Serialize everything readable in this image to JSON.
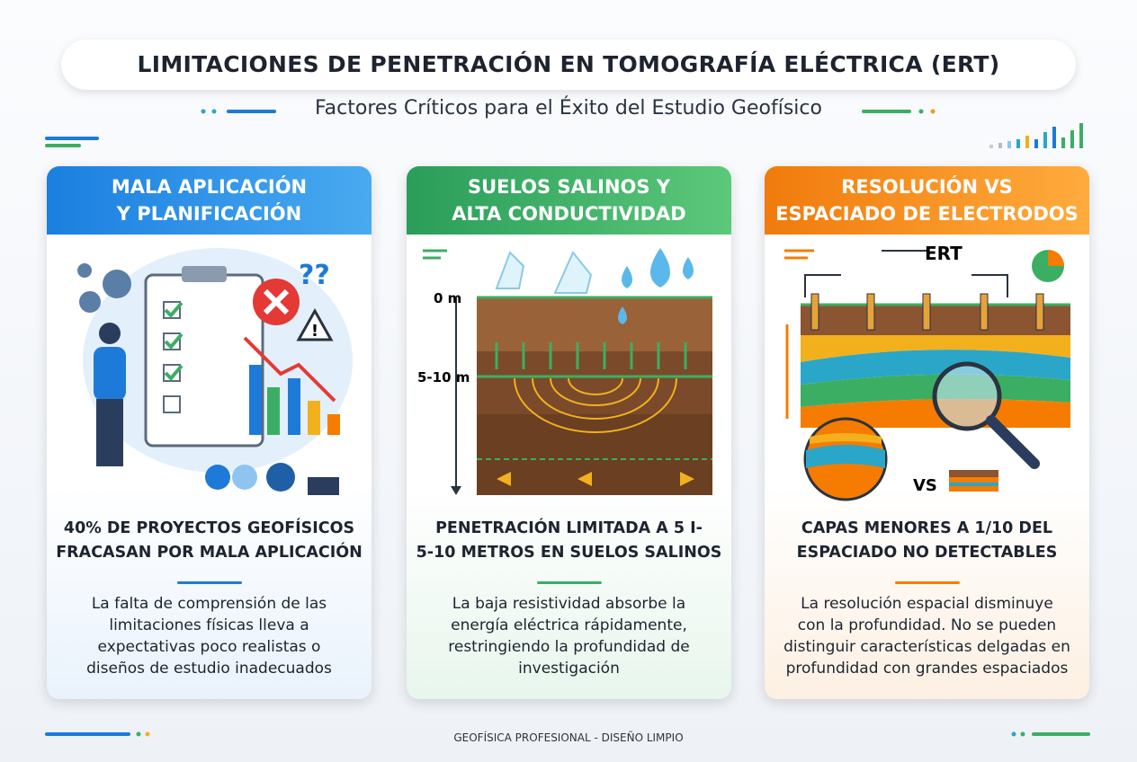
{
  "header": {
    "title": "LIMITACIONES DE PENETRACIÓN EN TOMOGRAFÍA ELÉCTRICA (ERT)",
    "subtitle": "Factores Críticos para el Éxito del Estudio Geofísico"
  },
  "cards": [
    {
      "title_lines": [
        "MALA APLICACIÓN",
        "Y PLANIFICACIÓN"
      ],
      "figure_labels": [],
      "headline_lines": [
        "40% DE PROYECTOS GEOFÍSICOS",
        "FRACASAN POR MALA APLICACIÓN"
      ],
      "description_lines": [
        "La falta de comprensión de las",
        "limitaciones físicas lleva a",
        "expectativas poco realistas o",
        "diseños de estudio inadecuados"
      ]
    },
    {
      "title_lines": [
        "SUELOS SALINOS Y",
        "ALTA CONDUCTIVIDAD"
      ],
      "figure_labels": [
        "0 m",
        "5-10 m"
      ],
      "headline_lines": [
        "PENETRACIÓN LIMITADA A 5 I-",
        "5-10 METROS EN SUELOS SALINOS"
      ],
      "description_lines": [
        "La baja resistividad absorbe la",
        "energía eléctrica rápidamente,",
        "restringiendo la profundidad de",
        "investigación"
      ]
    },
    {
      "title_lines": [
        "RESOLUCIÓN VS",
        "ESPACIADO DE ELECTRODOS"
      ],
      "figure_labels": [
        "ERT",
        "VS"
      ],
      "headline_lines": [
        "CAPAS MENORES A 1/10 DEL",
        "ESPACIADO NO DETECTABLES"
      ],
      "description_lines": [
        "La resolución espacial disminuye",
        "con la profundidad. No se pueden",
        "distinguir características delgadas en",
        "profundidad con grandes espaciados"
      ]
    }
  ],
  "footer": "GEOFÍSICA PROFESIONAL - DISEÑO LIMPIO"
}
